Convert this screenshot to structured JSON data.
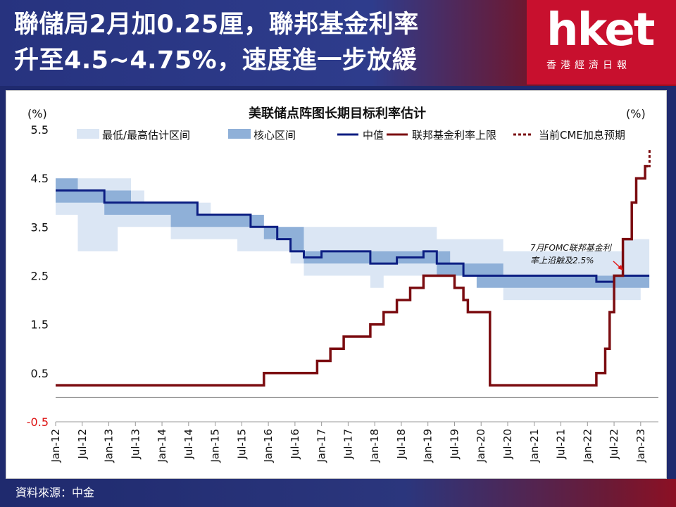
{
  "headline": {
    "line1": "聯儲局2月加0.25厘，聯邦基金利率",
    "line2": "升至4.5~4.75%，速度進一步放緩"
  },
  "logo": {
    "brand": "hket",
    "sub": "香港經濟日報"
  },
  "footer": {
    "source": "資料來源：中金"
  },
  "colors": {
    "range_band": "#dbe6f4",
    "core_band": "#8fb0d8",
    "median": "#0c1e82",
    "fed_funds": "#7b0c10",
    "accent": "#c8102e"
  },
  "chart_data": {
    "type": "line",
    "title": "美联储点阵图长期目标利率估计",
    "ylabel_left": "(%)",
    "ylabel_right": "(%)",
    "ylim": [
      -0.5,
      5.5
    ],
    "yticks": [
      5.5,
      4.5,
      3.5,
      2.5,
      1.5,
      0.5,
      -0.5
    ],
    "x_range": [
      "2012-01",
      "2023-05"
    ],
    "xticks": [
      "Jan-12",
      "Jul-12",
      "Jan-13",
      "Jul-13",
      "Jan-14",
      "Jul-14",
      "Jan-15",
      "Jul-15",
      "Jan-16",
      "Jul-16",
      "Jan-17",
      "Jul-17",
      "Jan-18",
      "Jul-18",
      "Jan-19",
      "Jul-19",
      "Jan-20",
      "Jul-20",
      "Jan-21",
      "Jul-21",
      "Jan-22",
      "Jul-22",
      "Jan-23"
    ],
    "legend": [
      {
        "name": "最低/最高估计区间",
        "kind": "range"
      },
      {
        "name": "核心区间",
        "kind": "core"
      },
      {
        "name": "中值",
        "kind": "median"
      },
      {
        "name": "联邦基金利率上限",
        "kind": "fed"
      },
      {
        "name": "当前CME加息预期",
        "kind": "cme"
      }
    ],
    "legend_position": "top",
    "annotation": {
      "text_line1": "7月FOMC联邦基金利",
      "text_line2": "率上沿触及2.5%"
    },
    "series": {
      "range_band": [
        [
          "2012-01",
          3.75,
          4.5
        ],
        [
          "2012-06",
          3.0,
          4.5
        ],
        [
          "2012-12",
          3.0,
          4.5
        ],
        [
          "2013-03",
          3.5,
          4.5
        ],
        [
          "2013-06",
          3.5,
          4.25
        ],
        [
          "2013-09",
          3.5,
          4.0
        ],
        [
          "2014-03",
          3.25,
          4.0
        ],
        [
          "2014-06",
          3.25,
          4.0
        ],
        [
          "2014-09",
          3.25,
          4.0
        ],
        [
          "2014-12",
          3.25,
          3.75
        ],
        [
          "2015-06",
          3.0,
          3.75
        ],
        [
          "2015-09",
          3.0,
          3.75
        ],
        [
          "2015-12",
          3.0,
          3.5
        ],
        [
          "2016-03",
          3.0,
          3.5
        ],
        [
          "2016-06",
          2.75,
          3.5
        ],
        [
          "2016-09",
          2.5,
          3.5
        ],
        [
          "2016-12",
          2.5,
          3.5
        ],
        [
          "2017-03",
          2.5,
          3.5
        ],
        [
          "2017-06",
          2.5,
          3.5
        ],
        [
          "2017-09",
          2.5,
          3.5
        ],
        [
          "2017-12",
          2.25,
          3.5
        ],
        [
          "2018-03",
          2.5,
          3.5
        ],
        [
          "2018-06",
          2.5,
          3.5
        ],
        [
          "2018-09",
          2.5,
          3.5
        ],
        [
          "2018-12",
          2.5,
          3.5
        ],
        [
          "2019-03",
          2.5,
          3.25
        ],
        [
          "2019-06",
          2.5,
          3.25
        ],
        [
          "2019-09",
          2.5,
          3.25
        ],
        [
          "2019-12",
          2.5,
          3.25
        ],
        [
          "2020-06",
          2.0,
          3.0
        ],
        [
          "2020-09",
          2.0,
          3.0
        ],
        [
          "2021-03",
          2.0,
          3.0
        ],
        [
          "2021-09",
          2.0,
          3.0
        ],
        [
          "2022-03",
          2.0,
          3.0
        ],
        [
          "2022-09",
          2.0,
          3.25
        ],
        [
          "2023-01",
          2.25,
          3.25
        ],
        [
          "2023-02",
          2.25,
          3.25
        ]
      ],
      "core_band": [
        [
          "2012-01",
          4.0,
          4.5
        ],
        [
          "2012-06",
          4.0,
          4.25
        ],
        [
          "2012-12",
          3.75,
          4.25
        ],
        [
          "2013-06",
          3.75,
          4.0
        ],
        [
          "2014-03",
          3.5,
          4.0
        ],
        [
          "2014-06",
          3.5,
          4.0
        ],
        [
          "2014-09",
          3.5,
          3.75
        ],
        [
          "2015-06",
          3.5,
          3.75
        ],
        [
          "2015-12",
          3.25,
          3.5
        ],
        [
          "2016-06",
          3.0,
          3.5
        ],
        [
          "2016-09",
          2.75,
          3.0
        ],
        [
          "2017-03",
          2.75,
          3.0
        ],
        [
          "2017-12",
          2.75,
          3.0
        ],
        [
          "2018-03",
          2.75,
          3.0
        ],
        [
          "2018-09",
          2.75,
          3.0
        ],
        [
          "2019-03",
          2.5,
          3.0
        ],
        [
          "2019-06",
          2.5,
          2.75
        ],
        [
          "2019-09",
          2.5,
          2.75
        ],
        [
          "2019-12",
          2.25,
          2.75
        ],
        [
          "2020-06",
          2.25,
          2.5
        ],
        [
          "2021-03",
          2.25,
          2.5
        ],
        [
          "2022-03",
          2.25,
          2.5
        ],
        [
          "2022-09",
          2.25,
          2.5
        ],
        [
          "2023-02",
          2.25,
          2.5
        ]
      ],
      "median": [
        [
          "2012-01",
          4.25
        ],
        [
          "2012-12",
          4.0
        ],
        [
          "2014-09",
          3.75
        ],
        [
          "2015-09",
          3.5
        ],
        [
          "2016-03",
          3.25
        ],
        [
          "2016-06",
          3.0
        ],
        [
          "2016-09",
          2.875
        ],
        [
          "2017-01",
          3.0
        ],
        [
          "2017-12",
          2.75
        ],
        [
          "2018-06",
          2.875
        ],
        [
          "2018-12",
          3.0
        ],
        [
          "2019-03",
          2.75
        ],
        [
          "2019-09",
          2.5
        ],
        [
          "2022-03",
          2.375
        ],
        [
          "2022-07",
          2.5
        ],
        [
          "2023-02",
          2.5
        ]
      ],
      "fed_funds": [
        [
          "2012-01",
          0.25
        ],
        [
          "2015-12",
          0.5
        ],
        [
          "2016-12",
          0.75
        ],
        [
          "2017-03",
          1.0
        ],
        [
          "2017-06",
          1.25
        ],
        [
          "2017-12",
          1.5
        ],
        [
          "2018-03",
          1.75
        ],
        [
          "2018-06",
          2.0
        ],
        [
          "2018-09",
          2.25
        ],
        [
          "2018-12",
          2.5
        ],
        [
          "2019-07",
          2.25
        ],
        [
          "2019-09",
          2.0
        ],
        [
          "2019-10",
          1.75
        ],
        [
          "2020-03",
          1.25
        ],
        [
          "2020-03",
          0.25
        ],
        [
          "2022-03",
          0.5
        ],
        [
          "2022-05",
          1.0
        ],
        [
          "2022-06",
          1.75
        ],
        [
          "2022-07",
          2.5
        ],
        [
          "2022-09",
          3.25
        ],
        [
          "2022-11",
          4.0
        ],
        [
          "2022-12",
          4.5
        ],
        [
          "2023-02",
          4.75
        ]
      ],
      "cme": [
        [
          "2023-02",
          4.75
        ],
        [
          "2023-03",
          5.0
        ]
      ]
    }
  }
}
